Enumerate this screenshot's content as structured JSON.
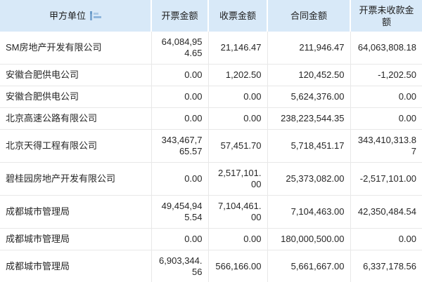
{
  "colors": {
    "header_bg": "#d8e9f8",
    "header_text": "#1c1c1c",
    "body_text": "#262626",
    "grid_border": "#e8e8e8",
    "sort_icon_dark": "#7fa9d2",
    "sort_icon_light": "#aac9e6"
  },
  "table": {
    "columns": [
      {
        "key": "company",
        "label": "甲方单位",
        "align": "text",
        "sortable": true
      },
      {
        "key": "invoiced",
        "label": "开票金额",
        "align": "num",
        "sortable": false
      },
      {
        "key": "received",
        "label": "收票金额",
        "align": "num",
        "sortable": false
      },
      {
        "key": "contract",
        "label": "合同金额",
        "align": "num",
        "sortable": false
      },
      {
        "key": "outstanding",
        "label": "开票未收款金额",
        "align": "num",
        "sortable": false
      }
    ],
    "rows": [
      {
        "company": "SM房地产开发有限公司",
        "invoiced": "64,084,954.65",
        "received": "21,146.47",
        "contract": "211,946.47",
        "outstanding": "64,063,808.18"
      },
      {
        "company": "安徽合肥供电公司",
        "invoiced": "0.00",
        "received": "1,202.50",
        "contract": "120,452.50",
        "outstanding": "-1,202.50"
      },
      {
        "company": "安徽合肥供电公司",
        "invoiced": "0.00",
        "received": "0.00",
        "contract": "5,624,376.00",
        "outstanding": "0.00"
      },
      {
        "company": "北京高速公路有限公司",
        "invoiced": "0.00",
        "received": "0.00",
        "contract": "238,223,544.35",
        "outstanding": "0.00"
      },
      {
        "company": "北京天得工程有限公司",
        "invoiced": "343,467,765.57",
        "received": "57,451.70",
        "contract": "5,718,451.17",
        "outstanding": "343,410,313.87"
      },
      {
        "company": "碧桂园房地产开发有限公司",
        "invoiced": "0.00",
        "received": "2,517,101.00",
        "contract": "25,373,082.00",
        "outstanding": "-2,517,101.00"
      },
      {
        "company": "成都城市管理局",
        "invoiced": "49,454,945.54",
        "received": "7,104,461.00",
        "contract": "7,104,463.00",
        "outstanding": "42,350,484.54"
      },
      {
        "company": "成都城市管理局",
        "invoiced": "0.00",
        "received": "0.00",
        "contract": "180,000,500.00",
        "outstanding": "0.00"
      },
      {
        "company": "成都城市管理局",
        "invoiced": "6,903,344.56",
        "received": "566,166.00",
        "contract": "5,661,667.00",
        "outstanding": "6,337,178.56"
      }
    ]
  }
}
